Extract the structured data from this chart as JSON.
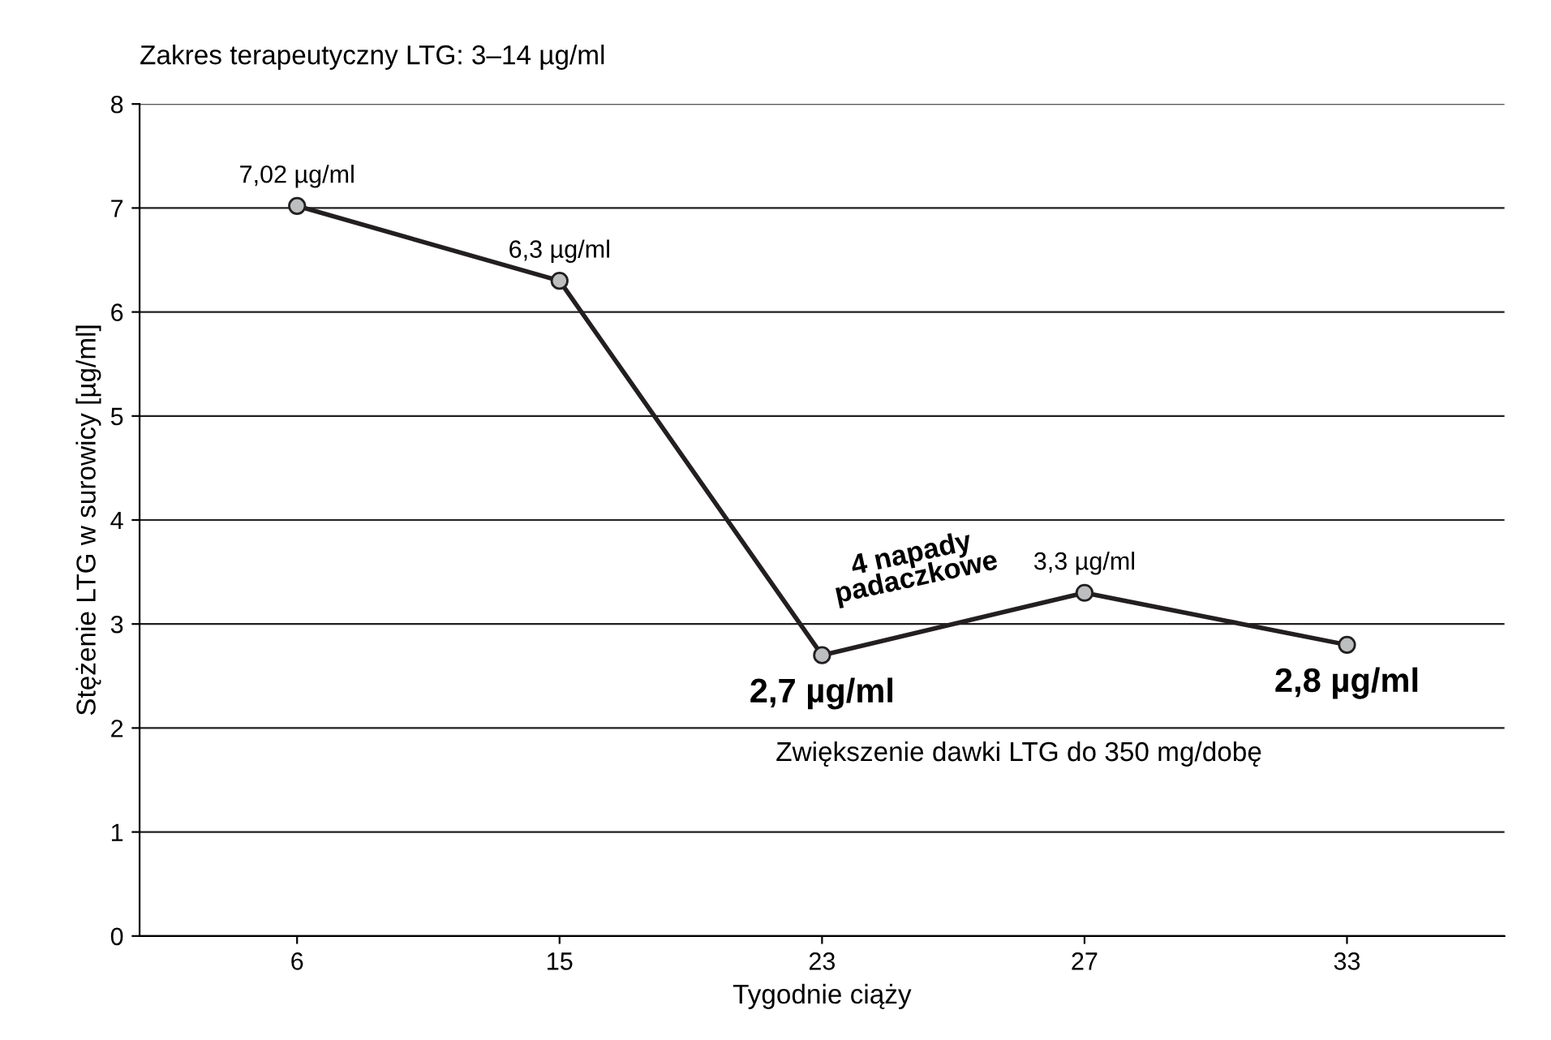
{
  "chart_data": {
    "type": "line",
    "title": "Zakres terapeutyczny LTG: 3–14 µg/ml",
    "xlabel": "Tygodnie ciąży",
    "ylabel": "Stężenie LTG w surowicy [µg/ml]",
    "categories": [
      "6",
      "15",
      "23",
      "27",
      "33"
    ],
    "series": [
      {
        "color": "#231f20",
        "values": [
          7.02,
          6.3,
          2.7,
          3.3,
          2.8
        ],
        "value_labels": [
          "7,02 µg/ml",
          "6,3 µg/ml",
          "2,7 µg/ml",
          "3,3 µg/ml",
          "2,8 µg/ml"
        ]
      }
    ],
    "ylim": [
      0,
      8
    ],
    "yticks": [
      0,
      1,
      2,
      3,
      4,
      5,
      6,
      7,
      8
    ],
    "grid": "y",
    "marker": "circle",
    "line_style": "solid",
    "annotations": [
      "4 napady padaczkowe",
      "Zwiększenie dawki LTG do 350 mg/dobę"
    ]
  }
}
